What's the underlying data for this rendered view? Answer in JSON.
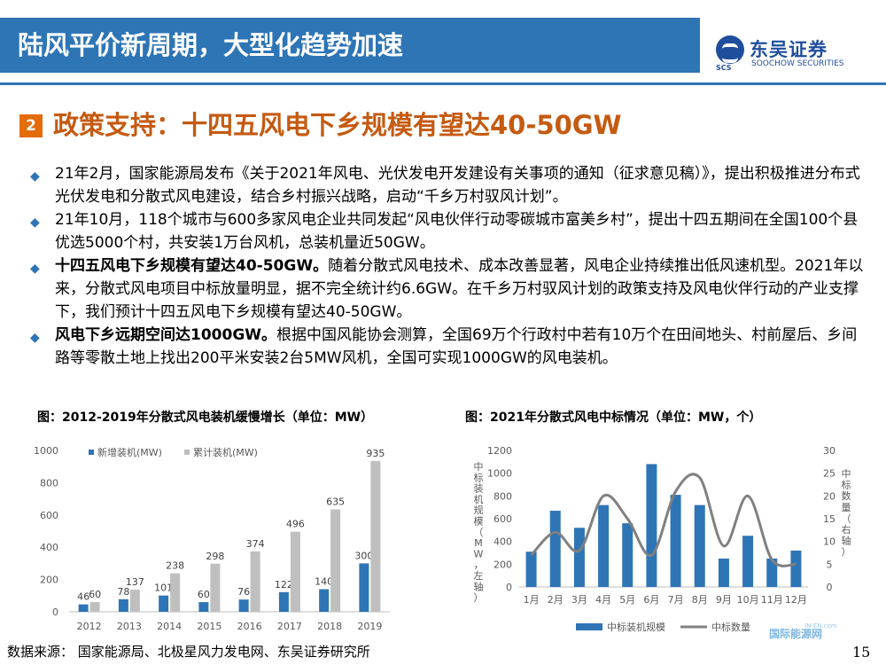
{
  "header": {
    "title": "陆风平价新周期，大型化趋势加速"
  },
  "logo": {
    "sub": "SCS",
    "cn": "东吴证券",
    "en": "SOOCHOW SECURITIES"
  },
  "section": {
    "number": "2",
    "title": "政策支持：十四五风电下乡规模有望达40-50GW"
  },
  "bullets": [
    {
      "bold": "",
      "text": "21年2月，国家能源局发布《关于2021年风电、光伏发电开发建设有关事项的通知（征求意见稿）》，提出积极推进分布式光伏发电和分散式风电建设，结合乡村振兴战略，启动“千乡万村驭风计划”。"
    },
    {
      "bold": "",
      "text": "21年10月，118个城市与600多家风电企业共同发起“风电伙伴行动零碳城市富美乡村”，提出十四五期间在全国100个县优选5000个村，共安装1万台风机，总装机量近50GW。"
    },
    {
      "bold": "十四五风电下乡规模有望达40-50GW。",
      "text": "随着分散式风电技术、成本改善显著，风电企业持续推出低风速机型。2021年以来，分散式风电项目中标放量明显，据不完全统计约6.6GW。在千乡万村驭风计划的政策支持及风电伙伴行动的产业支撑下，我们预计十四五风电下乡规模有望达40-50GW。"
    },
    {
      "bold": "风电下乡远期空间达1000GW。",
      "text": "根据中国风能协会测算，全国69万个行政村中若有10万个在田间地头、村前屋后、乡间路等零散土地上找出200平米安装2台5MW风机，全国可实现1000GW的风电装机。"
    }
  ],
  "captions": {
    "left": "图：2012-2019年分散式风电装机缓慢增长（单位：MW）",
    "right": "图：2021年分散式风电中标情况（单位：MW，个）"
  },
  "source": "数据来源：  国家能源局、北极星风力发电网、东吴证券研究所",
  "page_number": "15",
  "watermark": {
    "text": "国际能源网",
    "top": "IN-EN.com"
  },
  "chart_data": [
    {
      "type": "bar",
      "categories": [
        "2012",
        "2013",
        "2014",
        "2015",
        "2016",
        "2017",
        "2018",
        "2019"
      ],
      "series": [
        {
          "name": "新增装机(MW)",
          "values": [
            46,
            78,
            101,
            60,
            76,
            122,
            140,
            300
          ],
          "color": "#2E75B6"
        },
        {
          "name": "累计装机(MW)",
          "values": [
            60,
            137,
            238,
            298,
            374,
            496,
            635,
            935
          ],
          "color": "#BFBFBF"
        }
      ],
      "yticks": [
        "0",
        "200",
        "400",
        "600",
        "800",
        "1000"
      ],
      "ylim": [
        0,
        1000
      ],
      "legend": "top-left"
    },
    {
      "type": "bar+line",
      "categories": [
        "1月",
        "2月",
        "3月",
        "4月",
        "5月",
        "6月",
        "7月",
        "8月",
        "9月",
        "10月",
        "11月",
        "12月"
      ],
      "bars": {
        "name": "中标装机规模",
        "values": [
          310,
          670,
          520,
          720,
          560,
          1080,
          810,
          720,
          250,
          450,
          250,
          320
        ],
        "color": "#2E75B6"
      },
      "line": {
        "name": "中标数量",
        "values": [
          7,
          12,
          8,
          20,
          15,
          7,
          21,
          24,
          9,
          20,
          6,
          5
        ],
        "color": "#808080"
      },
      "yticks_left": [
        "0",
        "200",
        "400",
        "600",
        "800",
        "1000",
        "1200"
      ],
      "ylim_left": [
        0,
        1200
      ],
      "yticks_right": [
        "0",
        "5",
        "10",
        "15",
        "20",
        "25",
        "30"
      ],
      "ylim_right": [
        0,
        30
      ],
      "ylabel_left": "中标装机规模（MW，左轴）",
      "ylabel_right": "中标数量（右轴）",
      "legend": "bottom"
    }
  ]
}
